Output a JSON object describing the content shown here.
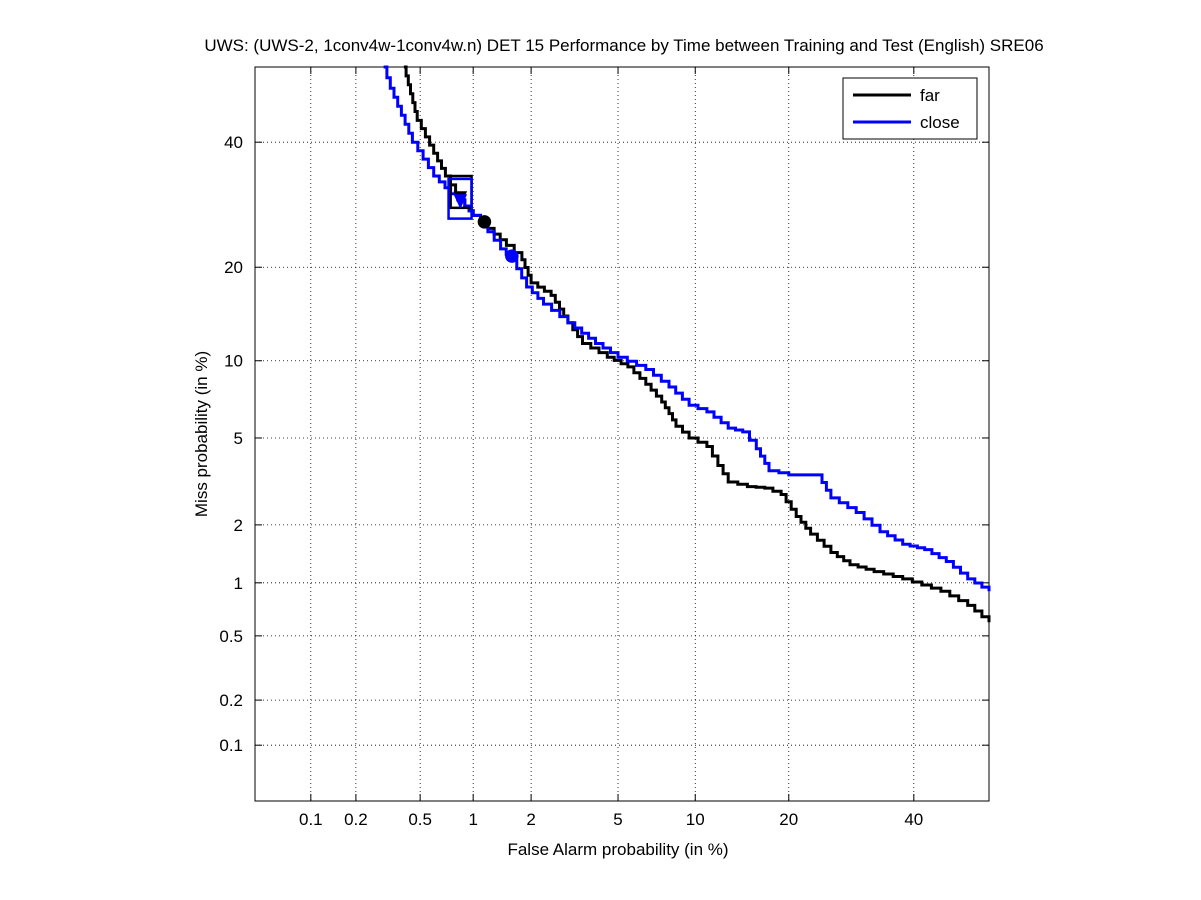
{
  "chart_data": {
    "type": "line",
    "subtype": "DET curve (normal deviate scale)",
    "title": "UWS: (UWS-2, 1conv4w-1conv4w.n) DET 15 Performance by Time between Training and Test (English) SRE06",
    "xlabel": "False Alarm probability (in %)",
    "ylabel": "Miss probability (in %)",
    "scale": "normal-deviate (probit) on both axes",
    "xlim": [
      0.04,
      54
    ],
    "ylim": [
      0.04,
      54
    ],
    "x_ticks": [
      0.1,
      0.2,
      0.5,
      1,
      2,
      5,
      10,
      20,
      40
    ],
    "x_tick_labels": [
      "0.1",
      "0.2",
      "0.5",
      "1",
      "2",
      "5",
      "10",
      "20",
      "40"
    ],
    "y_ticks": [
      0.1,
      0.2,
      0.5,
      1,
      2,
      5,
      10,
      20,
      40
    ],
    "y_tick_labels": [
      "0.1",
      "0.2",
      "0.5",
      "1",
      "2",
      "5",
      "10",
      "20",
      "40"
    ],
    "grid": true,
    "legend_position": "top-right",
    "series": [
      {
        "name": "far",
        "color": "#000000",
        "points": [
          [
            0.4,
            54
          ],
          [
            0.48,
            44
          ],
          [
            0.6,
            38
          ],
          [
            0.7,
            34
          ],
          [
            0.8,
            31
          ],
          [
            0.9,
            29
          ],
          [
            1.0,
            27.5
          ],
          [
            1.2,
            25.5
          ],
          [
            1.5,
            23
          ],
          [
            1.8,
            21
          ],
          [
            2.0,
            18
          ],
          [
            2.5,
            16.5
          ],
          [
            3.0,
            13.5
          ],
          [
            3.5,
            11.5
          ],
          [
            4.5,
            10.3
          ],
          [
            5.5,
            9.5
          ],
          [
            6.5,
            8.2
          ],
          [
            7.5,
            7.0
          ],
          [
            8.0,
            6.3
          ],
          [
            8.5,
            5.6
          ],
          [
            9.5,
            5.0
          ],
          [
            11,
            4.6
          ],
          [
            12,
            3.8
          ],
          [
            13,
            3.2
          ],
          [
            15,
            3.05
          ],
          [
            17,
            3.0
          ],
          [
            19,
            2.8
          ],
          [
            21,
            2.2
          ],
          [
            23,
            1.8
          ],
          [
            26,
            1.45
          ],
          [
            29,
            1.25
          ],
          [
            33,
            1.15
          ],
          [
            38,
            1.05
          ],
          [
            45,
            0.9
          ],
          [
            50,
            0.75
          ],
          [
            54,
            0.6
          ]
        ],
        "min_dcf_point": [
          0.85,
          30.5
        ],
        "eer_point": [
          1.15,
          26.5
        ],
        "confidence_box": {
          "x": [
            0.75,
            0.98
          ],
          "y": [
            28.7,
            34.0
          ]
        }
      },
      {
        "name": "close",
        "color": "#0000ff",
        "points": [
          [
            0.3,
            54
          ],
          [
            0.33,
            50
          ],
          [
            0.45,
            40
          ],
          [
            0.6,
            34
          ],
          [
            0.75,
            31
          ],
          [
            0.9,
            29
          ],
          [
            1.0,
            27.5
          ],
          [
            1.2,
            25
          ],
          [
            1.4,
            22.5
          ],
          [
            1.6,
            21
          ],
          [
            1.9,
            17.5
          ],
          [
            2.3,
            15.5
          ],
          [
            3.0,
            13.5
          ],
          [
            4.0,
            11.5
          ],
          [
            5.0,
            10.3
          ],
          [
            6.5,
            9.3
          ],
          [
            8.0,
            8.0
          ],
          [
            9.5,
            6.8
          ],
          [
            11,
            6.4
          ],
          [
            13,
            5.5
          ],
          [
            14.5,
            5.3
          ],
          [
            16,
            4.5
          ],
          [
            17.5,
            3.6
          ],
          [
            20,
            3.45
          ],
          [
            24,
            3.45
          ],
          [
            26,
            2.7
          ],
          [
            30,
            2.3
          ],
          [
            34,
            1.85
          ],
          [
            38,
            1.6
          ],
          [
            42,
            1.5
          ],
          [
            46,
            1.3
          ],
          [
            50,
            1.05
          ],
          [
            54,
            0.9
          ]
        ],
        "min_dcf_point": [
          0.85,
          30.0
        ],
        "eer_point": [
          1.6,
          21.5
        ],
        "confidence_box": {
          "x": [
            0.73,
            0.98
          ],
          "y": [
            27.0,
            33.5
          ]
        }
      }
    ]
  }
}
